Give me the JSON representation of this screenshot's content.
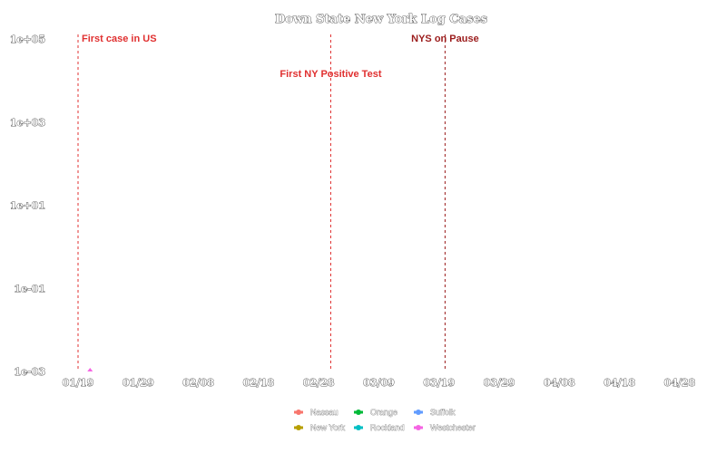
{
  "chart_data": {
    "type": "line",
    "title": "Down State New York Log Cases",
    "xlabel": "",
    "ylabel": "",
    "x_ticks": [
      "01/19",
      "01/29",
      "02/08",
      "02/18",
      "02/28",
      "03/09",
      "03/19",
      "03/29",
      "04/08",
      "04/18",
      "04/28"
    ],
    "y_ticks": [
      "1e+00",
      "1e+01",
      "1e+02",
      "1e+03",
      "1e+04"
    ],
    "y_tick_labels": [
      "1e-03",
      "1e-01",
      "1e+01",
      "1e+03",
      "1e+05"
    ],
    "y_scale": "log",
    "ylim_tick_index": [
      0,
      4
    ],
    "grid": false,
    "legend_position": "bottom",
    "series": [
      {
        "name": "Nassau",
        "color": "#F8766D",
        "points": []
      },
      {
        "name": "New York",
        "color": "#B79F00",
        "points": []
      },
      {
        "name": "Orange",
        "color": "#00BA38",
        "points": []
      },
      {
        "name": "Rockland",
        "color": "#00BFC4",
        "points": []
      },
      {
        "name": "Suffolk",
        "color": "#619CFF",
        "points": []
      },
      {
        "name": "Westchester",
        "color": "#F564E3",
        "points": [
          {
            "date": "01/21",
            "tick_index": 0
          }
        ]
      }
    ],
    "annotations": [
      {
        "label": "First case in US",
        "date": "01/19",
        "color": "#e03030"
      },
      {
        "label": "First NY Positive Test",
        "date": "03/01",
        "color": "#e03030"
      },
      {
        "label": "NYS on Pause",
        "date": "03/20",
        "color": "#9b1c1c"
      }
    ]
  }
}
